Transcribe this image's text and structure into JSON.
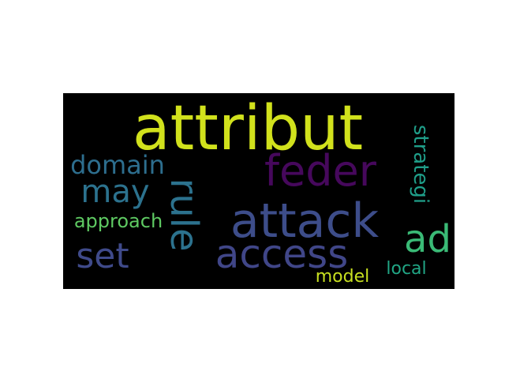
{
  "wordcloud": {
    "background_color": "#000000",
    "page_background": "#ffffff",
    "words": [
      {
        "text": "attribut",
        "color": "#d1e11c"
      },
      {
        "text": "feder",
        "color": "#46085c"
      },
      {
        "text": "attack",
        "color": "#3d4d8a"
      },
      {
        "text": "access",
        "color": "#404688"
      },
      {
        "text": "rule",
        "color": "#2c728e"
      },
      {
        "text": "domain",
        "color": "#2d6e8e"
      },
      {
        "text": "may",
        "color": "#2c728e"
      },
      {
        "text": "set",
        "color": "#3f4a8a"
      },
      {
        "text": "ad",
        "color": "#3aba76"
      },
      {
        "text": "strategi",
        "color": "#1f9e89"
      },
      {
        "text": "approach",
        "color": "#5ec962"
      },
      {
        "text": "model",
        "color": "#c8e020"
      },
      {
        "text": "local",
        "color": "#21a685"
      }
    ]
  }
}
